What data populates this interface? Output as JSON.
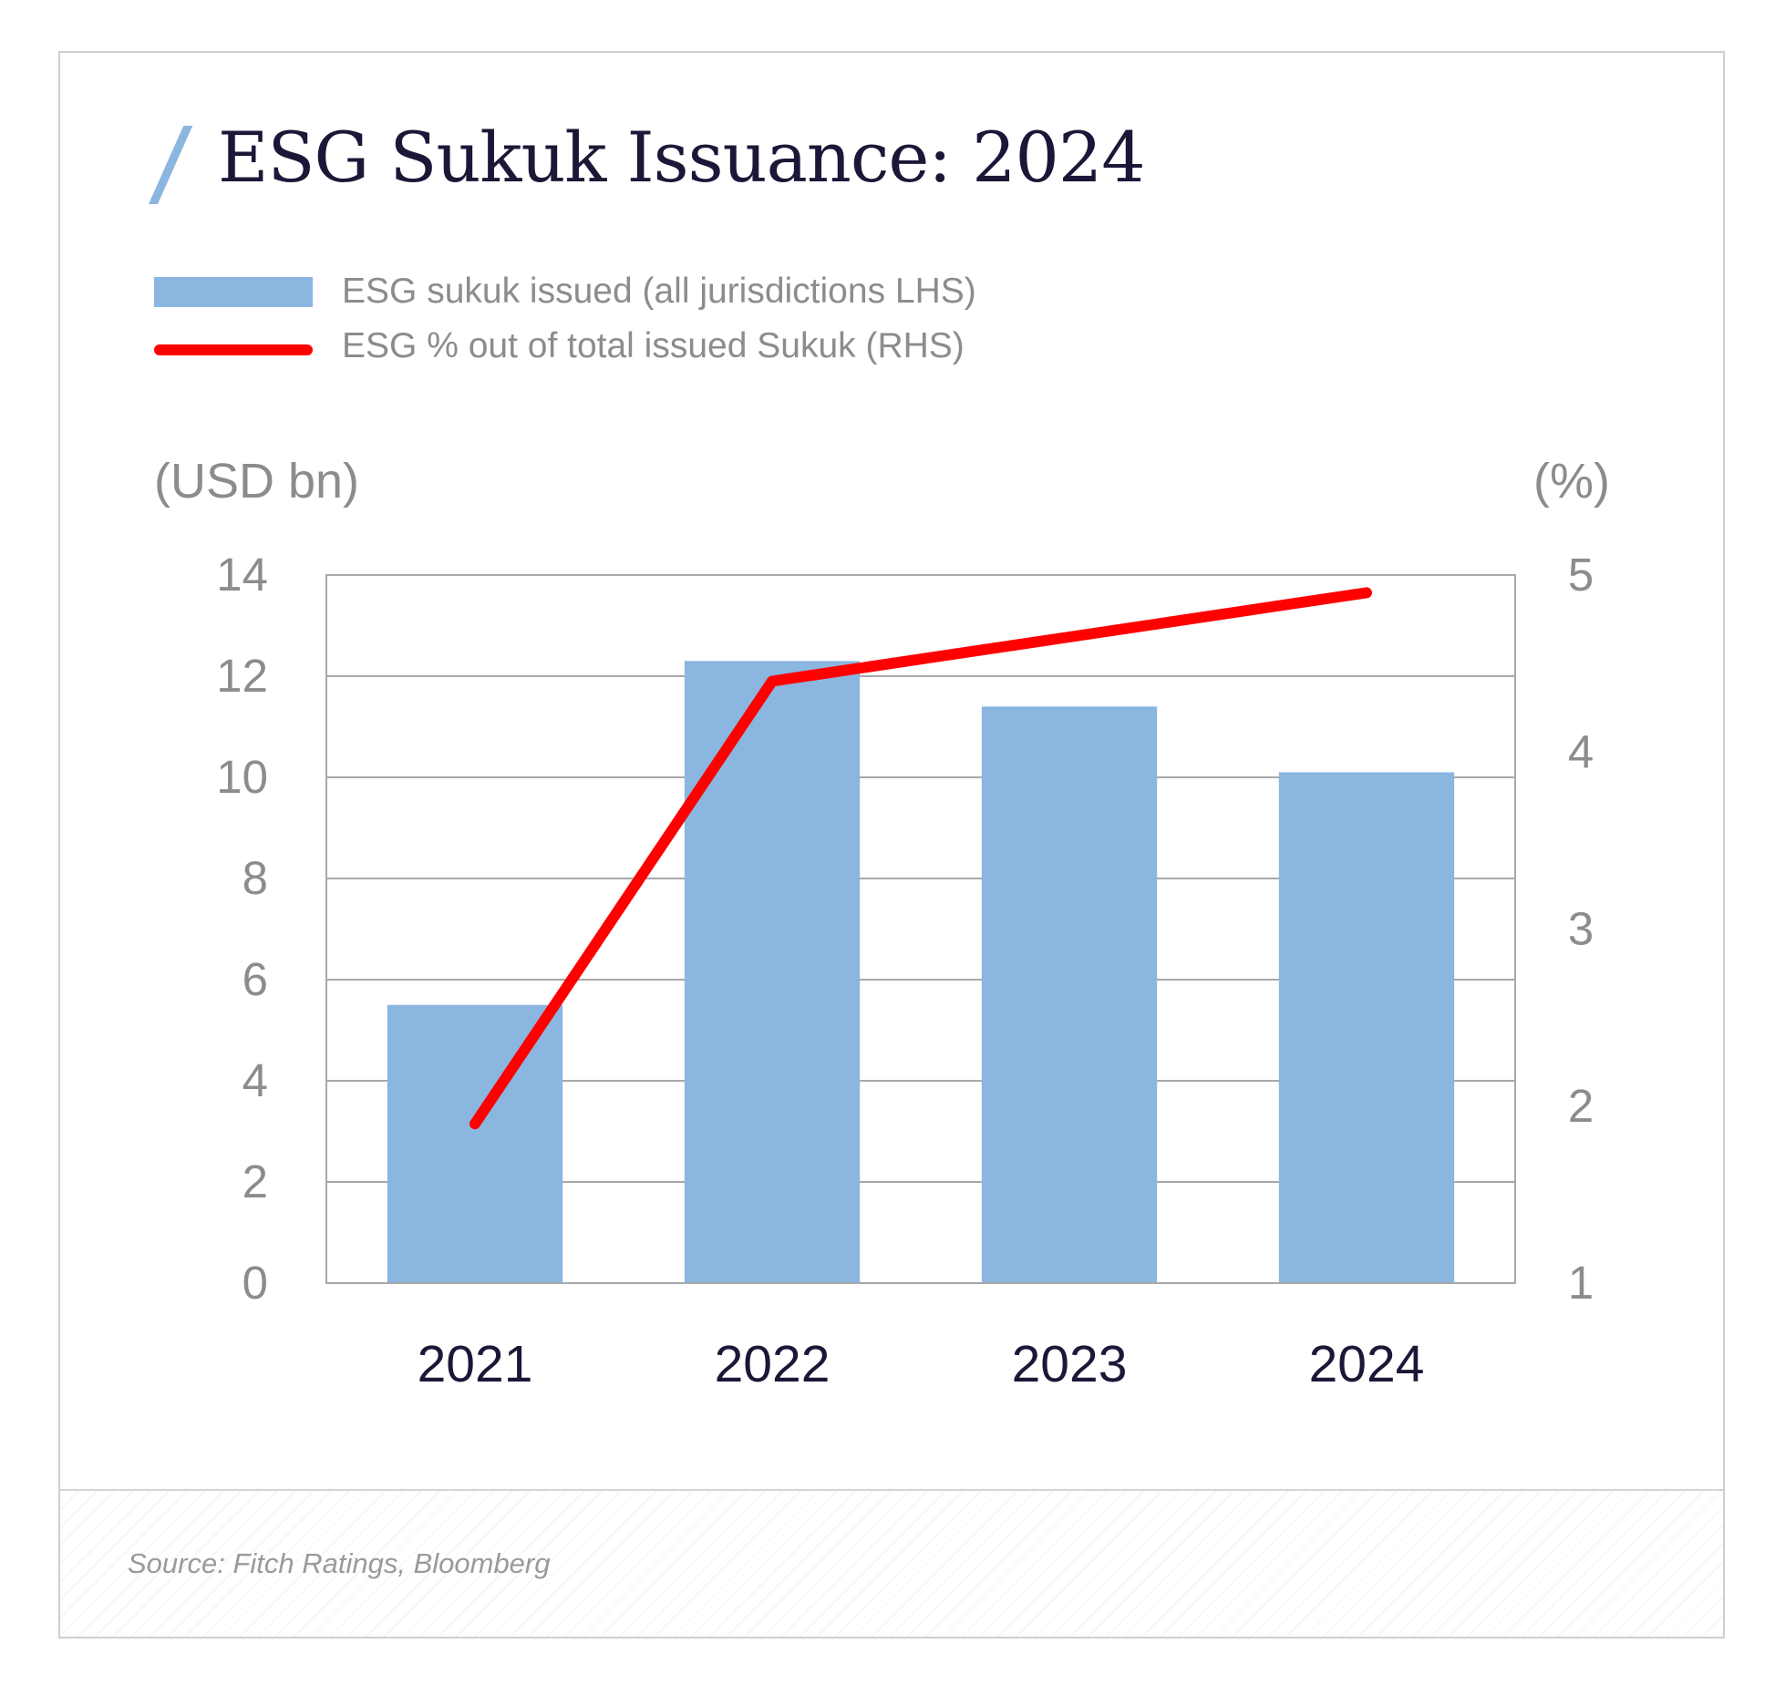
{
  "title": "ESG Sukuk Issuance: 2024",
  "legend": {
    "bar_label": "ESG sukuk issued (all jurisdictions LHS)",
    "line_label": "ESG % out of total issued Sukuk (RHS)"
  },
  "axis_units": {
    "left": "(USD bn)",
    "right": "(%)"
  },
  "source": "Source: Fitch Ratings, Bloomberg",
  "colors": {
    "bar": "#8ab6e0",
    "line": "#ff0000",
    "title": "#1e1637",
    "axis_text": "#8c8c8c",
    "category_text": "#1e1637",
    "grid": "#a8a8a8"
  },
  "chart_data": {
    "type": "bar",
    "categories": [
      "2021",
      "2022",
      "2023",
      "2024"
    ],
    "series": [
      {
        "name": "ESG sukuk issued (all jurisdictions LHS)",
        "type": "bar",
        "axis": "left",
        "values": [
          5.5,
          12.3,
          11.4,
          10.1
        ]
      },
      {
        "name": "ESG % out of total issued Sukuk (RHS)",
        "type": "line",
        "axis": "right",
        "values": [
          1.9,
          4.4,
          4.65,
          4.9
        ]
      }
    ],
    "left_axis": {
      "label": "(USD bn)",
      "ylim": [
        0,
        14
      ],
      "ticks": [
        "0",
        "2",
        "4",
        "6",
        "8",
        "10",
        "12",
        "14"
      ]
    },
    "right_axis": {
      "label": "(%)",
      "ylim": [
        1,
        5
      ],
      "ticks": [
        "1",
        "2",
        "3",
        "4",
        "5"
      ]
    },
    "grid": true,
    "legend_position": "top-left"
  }
}
